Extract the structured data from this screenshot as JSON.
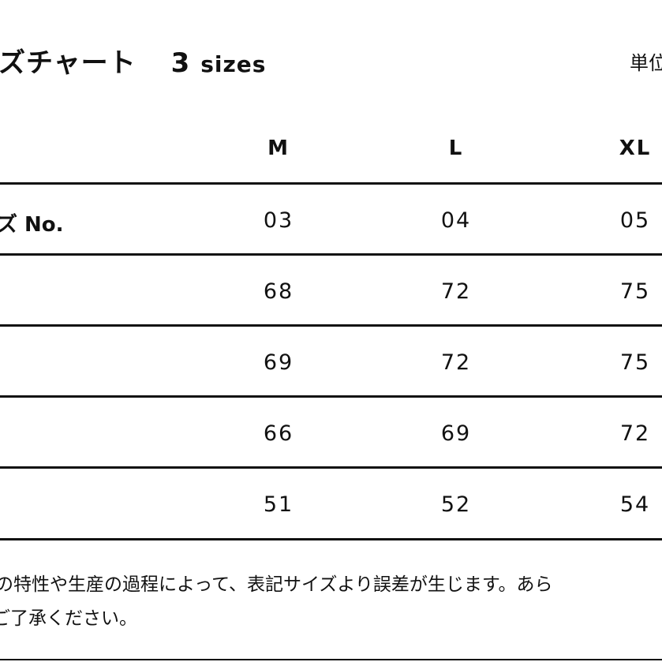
{
  "title": {
    "text": "ズチャート",
    "count": "3",
    "count_unit": "sizes"
  },
  "unit_label": "単位",
  "columns": [
    "M",
    "L",
    "XL"
  ],
  "rows": [
    {
      "label": "ズ No.",
      "values": [
        "03",
        "04",
        "05"
      ]
    },
    {
      "label": "",
      "values": [
        "68",
        "72",
        "75"
      ]
    },
    {
      "label": "",
      "values": [
        "69",
        "72",
        "75"
      ]
    },
    {
      "label": "",
      "values": [
        "66",
        "69",
        "72"
      ]
    },
    {
      "label": "",
      "values": [
        "51",
        "52",
        "54"
      ]
    }
  ],
  "notes": [
    "の特性や生産の過程によって、表記サイズより誤差が生じます。あら",
    "ご了承ください。"
  ]
}
